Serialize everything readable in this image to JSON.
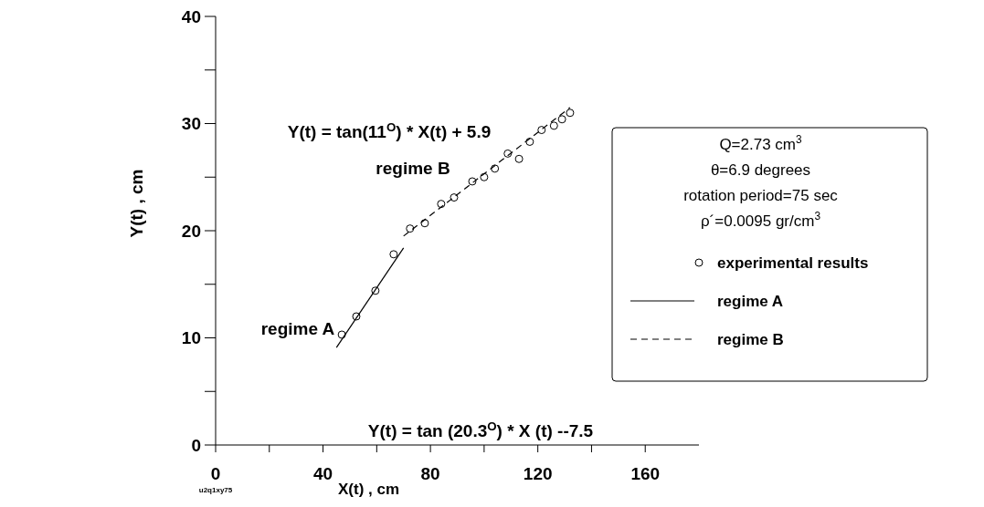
{
  "chart_data": {
    "type": "scatter",
    "xlabel": "X(t)   , cm",
    "ylabel": "Y(t)   , cm",
    "xlim": [
      0,
      180
    ],
    "ylim": [
      0,
      40
    ],
    "xticks": [
      0,
      {
        "value": 20,
        "label": null
      },
      40,
      {
        "value": 60,
        "label": null
      },
      80,
      {
        "value": 100,
        "label": null
      },
      120,
      {
        "value": 140,
        "label": null
      },
      160
    ],
    "yticks": [
      0,
      {
        "value": 5,
        "label": null
      },
      10,
      {
        "value": 15,
        "label": null
      },
      20,
      {
        "value": 25,
        "label": null
      },
      30,
      {
        "value": 35,
        "label": null
      },
      40
    ],
    "grid": false,
    "legend": "right",
    "series": [
      {
        "name": "experimental results",
        "type": "scatter",
        "color": "#000000",
        "marker": "circle",
        "x": [
          47,
          52.4,
          59.5,
          66.3,
          72.4,
          77.9,
          84,
          88.8,
          95.6,
          100,
          104,
          108.8,
          113,
          117,
          121.4,
          126,
          129,
          132
        ],
        "values": [
          10.3,
          12,
          14.4,
          17.8,
          20.2,
          20.7,
          22.5,
          23.1,
          24.6,
          25,
          25.8,
          27.2,
          26.7,
          28.3,
          29.4,
          29.8,
          30.4,
          31
        ]
      },
      {
        "name": "regime  A",
        "type": "line",
        "color": "#000000",
        "line_style": "solid",
        "marker": "none",
        "x": [
          45,
          70
        ],
        "values": [
          9.1,
          18.4
        ]
      },
      {
        "name": "regime   B",
        "type": "line",
        "color": "#000000",
        "line_style": "dashed",
        "marker": "none",
        "x": [
          70,
          132
        ],
        "values": [
          19.5,
          31.5
        ]
      }
    ],
    "annotations": [
      "Y(t)  = tan(11$^{O}$) * X(t)  + 5.9",
      "regime  B",
      "regime A",
      "Y(t) = tan (20.3$^{O}$) * X (t) --7.5",
      "Q=2.73 cm$^{3}$",
      "θ=6.9 degrees",
      "rotation period=75 sec",
      "ρ´=0.0095 gr/cm$^{3}$",
      "u2q1xy75"
    ]
  }
}
